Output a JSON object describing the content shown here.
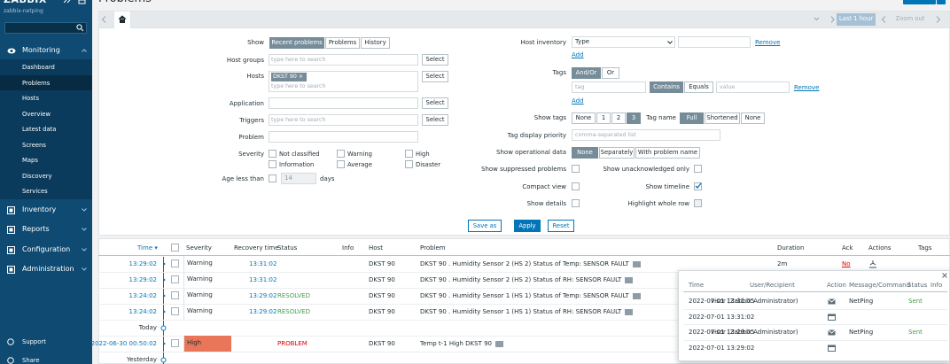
{
  "sidebar": {
    "logo": "ZABBIX",
    "server": "zabbix-netping",
    "menu": [
      {
        "label": "Monitoring",
        "items": [
          "Dashboard",
          "Problems",
          "Hosts",
          "Overview",
          "Latest data",
          "Screens",
          "Maps",
          "Discovery",
          "Services"
        ]
      },
      {
        "label": "Inventory"
      },
      {
        "label": "Reports"
      },
      {
        "label": "Configuration"
      },
      {
        "label": "Administration"
      }
    ],
    "footer": [
      "Support",
      "Share"
    ]
  },
  "header": {
    "title": "Problems"
  },
  "timebar": {
    "period": "Last 1 hour",
    "zoom_out": "Zoom out"
  },
  "filter": {
    "show": {
      "label": "Show",
      "options": [
        "Recent problems",
        "Problems",
        "History"
      ],
      "selected": 0
    },
    "host_groups": {
      "label": "Host groups",
      "placeholder": "type here to search",
      "button": "Select"
    },
    "hosts": {
      "label": "Hosts",
      "chip": "DKST 90 ×",
      "placeholder": "type here to search",
      "button": "Select"
    },
    "application": {
      "label": "Application",
      "button": "Select"
    },
    "triggers": {
      "label": "Triggers",
      "placeholder": "type here to search",
      "button": "Select"
    },
    "problem": {
      "label": "Problem"
    },
    "severity": {
      "label": "Severity",
      "options": [
        "Not classified",
        "Warning",
        "High",
        "Information",
        "Average",
        "Disaster"
      ]
    },
    "age": {
      "label": "Age less than",
      "value": 14,
      "unit": "days"
    },
    "host_inventory": {
      "label": "Host inventory",
      "field": "Type",
      "remove": "Remove",
      "add": "Add"
    },
    "tags": {
      "label": "Tags",
      "operator": [
        "And/Or",
        "Or"
      ],
      "operator_selected": 0,
      "tag_placeholder": "tag",
      "match": [
        "Contains",
        "Equals"
      ],
      "match_selected": 0,
      "value_placeholder": "value",
      "remove": "Remove",
      "add": "Add"
    },
    "show_tags": {
      "label": "Show tags",
      "options": [
        "None",
        "1",
        "2",
        "3"
      ],
      "selected": 3
    },
    "tag_name": {
      "label": "Tag name",
      "options": [
        "Full",
        "Shortened",
        "None"
      ],
      "selected": 0
    },
    "tag_priority": {
      "label": "Tag display priority",
      "placeholder": "comma-separated list"
    },
    "operational_data": {
      "label": "Show operational data",
      "options": [
        "None",
        "Separately",
        "With problem name"
      ],
      "selected": 0
    },
    "checks": [
      {
        "label": "Show suppressed problems",
        "checked": false
      },
      {
        "label": "Show unacknowledged only",
        "checked": false
      },
      {
        "label": "Compact view",
        "checked": false
      },
      {
        "label": "Show timeline",
        "checked": true
      },
      {
        "label": "Show details",
        "checked": false
      },
      {
        "label": "Highlight whole row",
        "checked": false,
        "disabled": true
      }
    ],
    "buttons": [
      "Save as",
      "Apply",
      "Reset"
    ]
  },
  "table": {
    "columns": [
      "Time ▾",
      "Severity",
      "Recovery time",
      "Status",
      "Info",
      "Host",
      "Problem",
      "Duration",
      "Ack",
      "Actions",
      "Tags"
    ],
    "rows": [
      {
        "time": "13:29:02",
        "severity": "Warning",
        "recovery": "13:31:02",
        "host": "DKST 90",
        "problem": "DKST 90 . Humidity Sensor 2 (HS 2) Status of Temp: SENSOR FAULT",
        "duration": "2m",
        "ack": "No"
      },
      {
        "time": "13:29:02",
        "severity": "Warning",
        "recovery": "13:31:02",
        "host": "DKST 90",
        "problem": "DKST 90 . Humidity Sensor 2 (HS 2) Status of RH: SENSOR FAULT"
      },
      {
        "time": "13:24:02",
        "severity": "Warning",
        "recovery": "13:29:02",
        "status": "RESOLVED",
        "host": "DKST 90",
        "problem": "DKST 90 . Humidity Sensor 1 (HS 1) Status of Temp: SENSOR FAULT"
      },
      {
        "time": "13:24:02",
        "severity": "Warning",
        "recovery": "13:29:02",
        "status": "RESOLVED",
        "host": "DKST 90",
        "problem": "DKST 90 . Humidity Sensor 1 (HS 1) Status of RH: SENSOR FAULT"
      },
      {
        "divider": "Today"
      },
      {
        "time": "2022-06-30 00:50:02",
        "severity": "High",
        "status": "PROBLEM",
        "host": "DKST 90",
        "problem": "Temp t-1 High DKST 90"
      },
      {
        "divider": "Yesterday"
      }
    ]
  },
  "popup": {
    "columns": [
      "Time",
      "User/Recipient",
      "Action",
      "Message/Command",
      "Status",
      "Info"
    ],
    "rows": [
      {
        "time": "2022-07-01 13:31:05",
        "user": "visor (Zabbix Administrator)",
        "message": "NetPing",
        "status": "Sent"
      },
      {
        "time": "2022-07-01 13:31:02"
      },
      {
        "time": "2022-07-01 13:29:05",
        "user": "visor (Zabbix Administrator)",
        "message": "NetPing",
        "status": "Sent"
      },
      {
        "time": "2022-07-01 13:29:02"
      }
    ]
  }
}
